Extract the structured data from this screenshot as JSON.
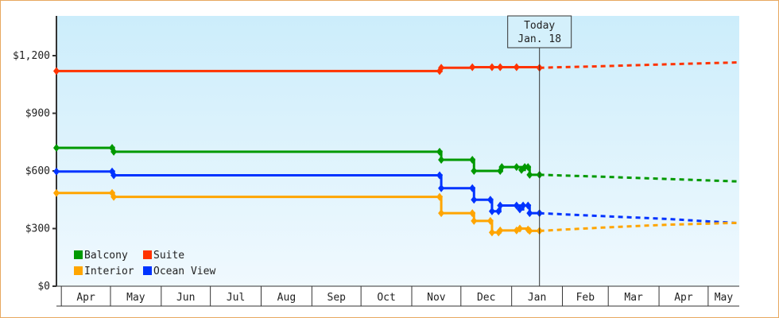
{
  "chart_data": {
    "type": "line",
    "title": "",
    "x_unit": "days since Apr 1",
    "ylim": [
      0,
      1400
    ],
    "yticks": [
      0,
      300,
      600,
      900,
      1200
    ],
    "ytick_labels": [
      "$0",
      "$300",
      "$600",
      "$900",
      "$1,200"
    ],
    "months": [
      "Apr",
      "May",
      "Jun",
      "Jul",
      "Aug",
      "Sep",
      "Oct",
      "Nov",
      "Dec",
      "Jan",
      "Feb",
      "Mar",
      "Apr",
      "May"
    ],
    "month_starts": [
      0,
      30,
      61,
      91,
      122,
      153,
      183,
      214,
      244,
      275,
      306,
      334,
      365,
      395
    ],
    "xlim": [
      -3,
      414
    ],
    "today": {
      "x": 292,
      "line1": "Today",
      "line2": "Jan. 18"
    },
    "series": [
      {
        "name": "Suite",
        "color": "#ff3300",
        "points": [
          [
            -3,
            1120
          ],
          [
            231,
            1120
          ],
          [
            232,
            1137
          ],
          [
            251,
            1140
          ],
          [
            263,
            1140
          ],
          [
            268,
            1140
          ],
          [
            278,
            1140
          ],
          [
            292,
            1137
          ]
        ],
        "forecast": [
          [
            292,
            1137
          ],
          [
            330,
            1145
          ],
          [
            370,
            1155
          ],
          [
            414,
            1165
          ]
        ]
      },
      {
        "name": "Balcony",
        "color": "#009900",
        "points": [
          [
            -3,
            720
          ],
          [
            31,
            720
          ],
          [
            32,
            700
          ],
          [
            231,
            700
          ],
          [
            232,
            658
          ],
          [
            251,
            658
          ],
          [
            252,
            600
          ],
          [
            268,
            600
          ],
          [
            269,
            620
          ],
          [
            278,
            620
          ],
          [
            281,
            605
          ],
          [
            283,
            620
          ],
          [
            285,
            620
          ],
          [
            286,
            580
          ],
          [
            292,
            580
          ]
        ],
        "forecast": [
          [
            292,
            580
          ],
          [
            330,
            570
          ],
          [
            370,
            558
          ],
          [
            414,
            545
          ]
        ]
      },
      {
        "name": "Ocean View",
        "color": "#0033ff",
        "points": [
          [
            -3,
            597
          ],
          [
            31,
            597
          ],
          [
            32,
            577
          ],
          [
            231,
            577
          ],
          [
            232,
            510
          ],
          [
            251,
            510
          ],
          [
            252,
            450
          ],
          [
            262,
            450
          ],
          [
            263,
            390
          ],
          [
            267,
            390
          ],
          [
            268,
            420
          ],
          [
            278,
            420
          ],
          [
            280,
            400
          ],
          [
            282,
            420
          ],
          [
            285,
            420
          ],
          [
            286,
            380
          ],
          [
            292,
            380
          ]
        ],
        "forecast": [
          [
            292,
            380
          ],
          [
            330,
            365
          ],
          [
            370,
            350
          ],
          [
            414,
            328
          ]
        ]
      },
      {
        "name": "Interior",
        "color": "#ffa500",
        "points": [
          [
            -3,
            485
          ],
          [
            31,
            485
          ],
          [
            32,
            465
          ],
          [
            231,
            465
          ],
          [
            232,
            380
          ],
          [
            251,
            380
          ],
          [
            252,
            340
          ],
          [
            262,
            340
          ],
          [
            263,
            280
          ],
          [
            267,
            280
          ],
          [
            268,
            290
          ],
          [
            278,
            290
          ],
          [
            280,
            300
          ],
          [
            285,
            295
          ],
          [
            286,
            288
          ],
          [
            292,
            288
          ]
        ],
        "forecast": [
          [
            292,
            288
          ],
          [
            330,
            305
          ],
          [
            370,
            320
          ],
          [
            414,
            330
          ]
        ]
      }
    ],
    "legend": {
      "placement": "bottom-left",
      "entries": [
        "Balcony",
        "Suite",
        "Interior",
        "Ocean View"
      ]
    }
  }
}
